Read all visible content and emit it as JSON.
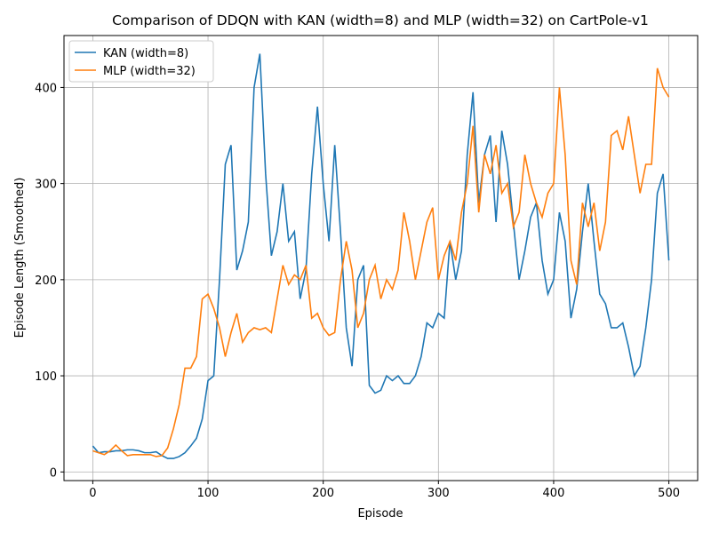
{
  "chart_data": {
    "type": "line",
    "title": "Comparison of DDQN with KAN (width=8) and MLP (width=32) on CartPole-v1",
    "xlabel": "Episode",
    "ylabel": "Episode Length (Smoothed)",
    "x": [
      0,
      5,
      10,
      15,
      20,
      25,
      30,
      35,
      40,
      45,
      50,
      55,
      60,
      65,
      70,
      75,
      80,
      85,
      90,
      95,
      100,
      105,
      110,
      115,
      120,
      125,
      130,
      135,
      140,
      145,
      150,
      155,
      160,
      165,
      170,
      175,
      180,
      185,
      190,
      195,
      200,
      205,
      210,
      215,
      220,
      225,
      230,
      235,
      240,
      245,
      250,
      255,
      260,
      265,
      270,
      275,
      280,
      285,
      290,
      295,
      300,
      305,
      310,
      315,
      320,
      325,
      330,
      335,
      340,
      345,
      350,
      355,
      360,
      365,
      370,
      375,
      380,
      385,
      390,
      395,
      400,
      405,
      410,
      415,
      420,
      425,
      430,
      435,
      440,
      445,
      450,
      455,
      460,
      465,
      470,
      475,
      480,
      485,
      490,
      495,
      500
    ],
    "series": [
      {
        "name": "KAN (width=8)",
        "color": "#1f77b4",
        "values": [
          27,
          20,
          21,
          21,
          22,
          22,
          23,
          23,
          22,
          20,
          20,
          21,
          17,
          14,
          14,
          16,
          20,
          27,
          35,
          55,
          95,
          100,
          200,
          320,
          340,
          210,
          230,
          260,
          400,
          435,
          310,
          225,
          250,
          300,
          240,
          250,
          180,
          210,
          310,
          380,
          300,
          240,
          340,
          250,
          150,
          110,
          200,
          215,
          90,
          82,
          85,
          100,
          95,
          100,
          92,
          92,
          100,
          120,
          155,
          150,
          165,
          160,
          240,
          200,
          230,
          330,
          395,
          280,
          330,
          350,
          260,
          355,
          320,
          260,
          200,
          230,
          265,
          280,
          220,
          185,
          200,
          270,
          240,
          160,
          190,
          250,
          300,
          240,
          185,
          175,
          150,
          150,
          155,
          130,
          100,
          110,
          150,
          200,
          290,
          310,
          220
        ]
      },
      {
        "name": "MLP (width=32)",
        "color": "#ff7f0e",
        "values": [
          22,
          20,
          18,
          22,
          28,
          22,
          17,
          18,
          18,
          18,
          18,
          16,
          17,
          25,
          45,
          70,
          108,
          108,
          120,
          180,
          185,
          170,
          150,
          120,
          145,
          165,
          135,
          145,
          150,
          148,
          150,
          145,
          180,
          215,
          195,
          205,
          200,
          215,
          160,
          165,
          150,
          142,
          145,
          200,
          240,
          210,
          150,
          165,
          200,
          215,
          180,
          200,
          190,
          210,
          270,
          240,
          200,
          230,
          260,
          275,
          200,
          225,
          240,
          220,
          270,
          300,
          360,
          270,
          330,
          310,
          340,
          290,
          300,
          255,
          270,
          330,
          300,
          280,
          265,
          290,
          300,
          400,
          330,
          220,
          195,
          280,
          255,
          280,
          230,
          260,
          350,
          355,
          335,
          370,
          330,
          290,
          320,
          320,
          420,
          400,
          390
        ]
      }
    ],
    "xlim": [
      -25,
      525
    ],
    "ylim": [
      -9,
      454
    ],
    "xticks": [
      0,
      100,
      200,
      300,
      400,
      500
    ],
    "yticks": [
      0,
      100,
      200,
      300,
      400
    ],
    "grid": true,
    "legend": "upper-left"
  }
}
